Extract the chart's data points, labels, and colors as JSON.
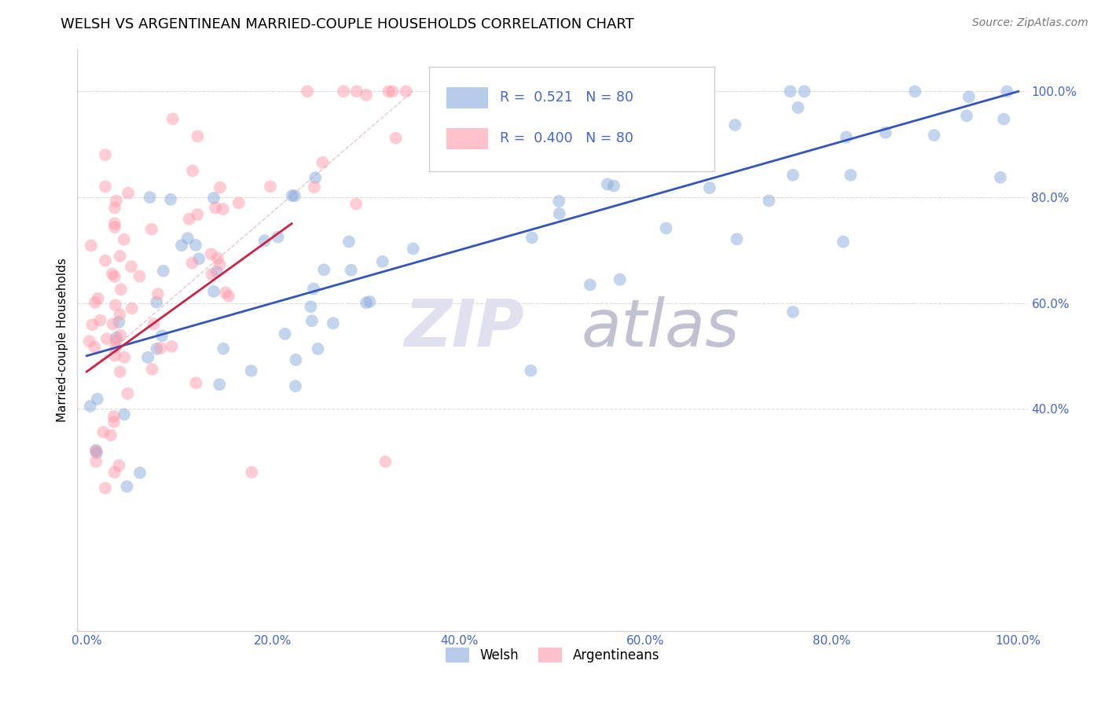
{
  "title": "WELSH VS ARGENTINEAN MARRIED-COUPLE HOUSEHOLDS CORRELATION CHART",
  "source": "Source: ZipAtlas.com",
  "ylabel": "Married-couple Households",
  "welsh_color": "#88AADD",
  "argentinean_color": "#FF99AA",
  "welsh_line_color": "#3355BB",
  "argentinean_line_color": "#CC2244",
  "diagonal_color": "#DDBBBB",
  "welsh_R": 0.521,
  "welsh_N": 80,
  "argentinean_R": 0.4,
  "argentinean_N": 80,
  "xtick_vals": [
    0.0,
    0.2,
    0.4,
    0.6,
    0.8,
    1.0
  ],
  "ytick_vals": [
    0.4,
    0.6,
    0.8,
    1.0
  ],
  "tick_color": "#4466CC",
  "grid_color": "#CCCCCC",
  "title_fontsize": 13,
  "source_fontsize": 10,
  "tick_fontsize": 11,
  "watermark_zip_color": "#DDDDEE",
  "watermark_atlas_color": "#BBBBCC"
}
